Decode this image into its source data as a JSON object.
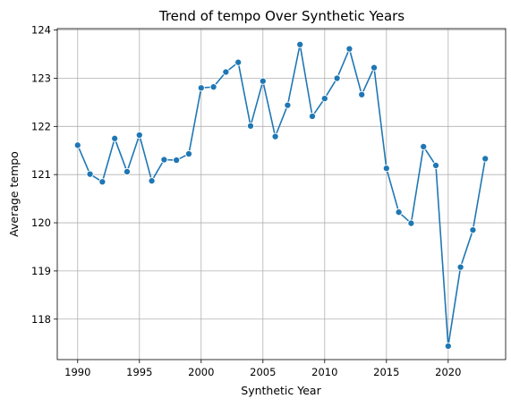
{
  "chart_data": {
    "type": "line",
    "title": "Trend of tempo Over Synthetic Years",
    "xlabel": "Synthetic Year",
    "ylabel": "Average tempo",
    "xlim": [
      1988.35,
      2024.65
    ],
    "ylim": [
      117.16,
      124.03
    ],
    "xticks": [
      1990,
      1995,
      2000,
      2005,
      2010,
      2015,
      2020
    ],
    "yticks": [
      118,
      119,
      120,
      121,
      122,
      123,
      124
    ],
    "grid": true,
    "line_color": "#1f77b4",
    "series": [
      {
        "x": [
          1990,
          1991,
          1992,
          1993,
          1994,
          1995,
          1996,
          1997,
          1998,
          1999,
          2000,
          2001,
          2002,
          2003,
          2004,
          2005,
          2006,
          2007,
          2008,
          2009,
          2010,
          2011,
          2012,
          2013,
          2014,
          2015,
          2016,
          2017,
          2018,
          2019,
          2020,
          2021,
          2022,
          2023
        ],
        "values": [
          121.61,
          121.01,
          120.85,
          121.75,
          121.06,
          121.82,
          120.87,
          121.31,
          121.3,
          121.43,
          122.8,
          122.82,
          123.13,
          123.33,
          122.01,
          122.94,
          121.79,
          122.44,
          123.7,
          122.21,
          122.58,
          123.0,
          123.61,
          122.66,
          123.22,
          121.13,
          120.22,
          119.99,
          121.58,
          121.19,
          117.44,
          119.08,
          119.85,
          121.33
        ]
      }
    ]
  }
}
